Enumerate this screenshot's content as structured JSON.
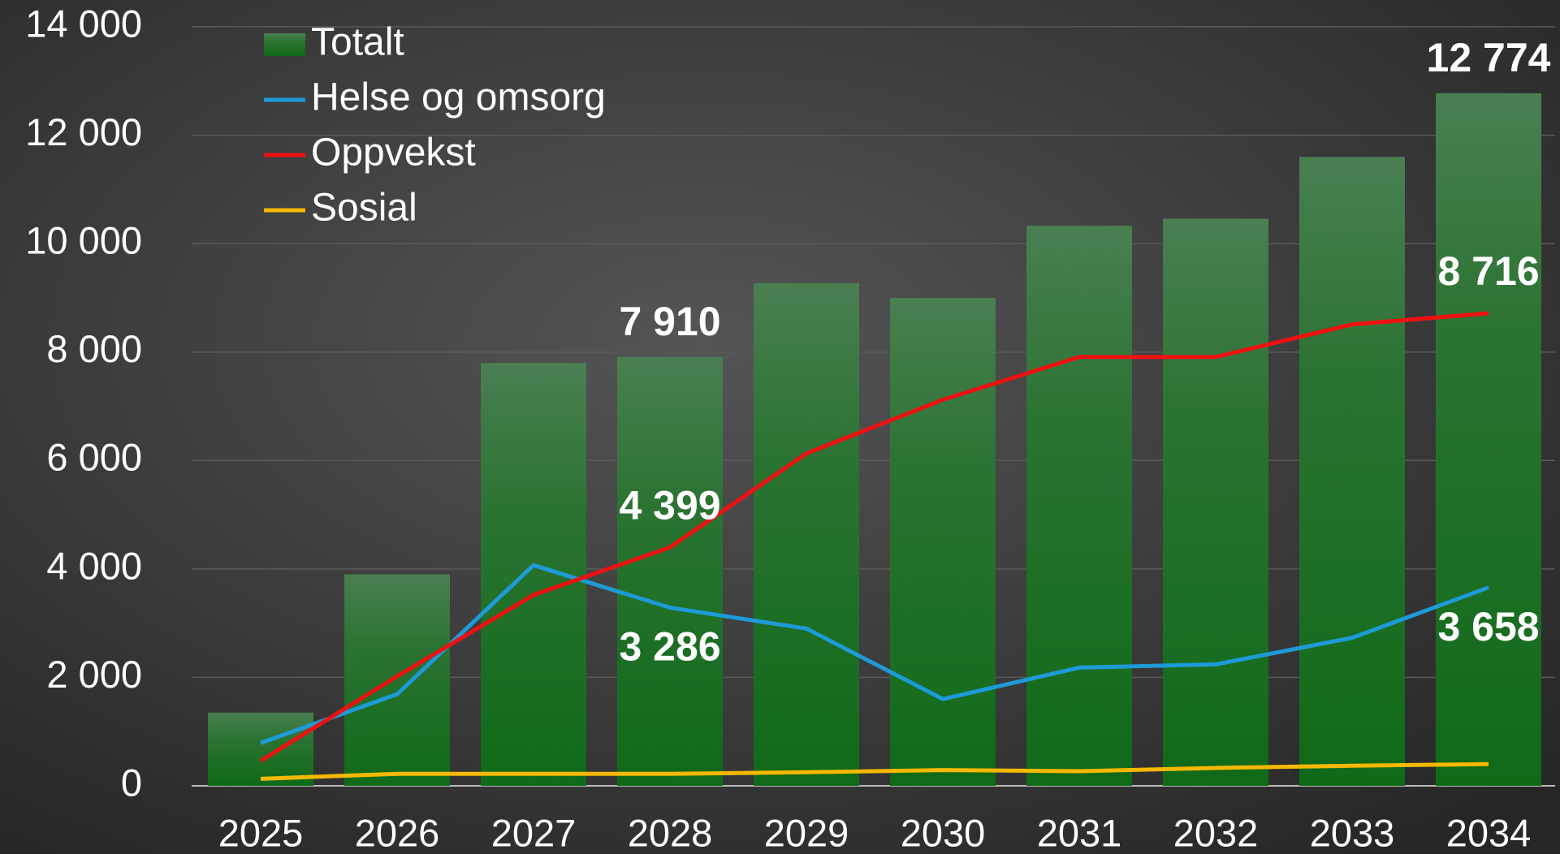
{
  "chart_data": {
    "type": "bar",
    "categories": [
      "2025",
      "2026",
      "2027",
      "2028",
      "2029",
      "2030",
      "2031",
      "2032",
      "2033",
      "2034"
    ],
    "series": [
      {
        "name": "Totalt",
        "type": "bar",
        "color": "#1a6e22",
        "values": [
          1350,
          3900,
          7800,
          7910,
          9270,
          9000,
          10330,
          10460,
          11600,
          12774
        ],
        "value_labels": [
          null,
          null,
          null,
          "7 910",
          null,
          null,
          null,
          null,
          null,
          "12 774"
        ]
      },
      {
        "name": "Helse og omsorg",
        "type": "line",
        "color": "#1e9ad6",
        "values": [
          790,
          1690,
          4070,
          3286,
          2900,
          1600,
          2180,
          2240,
          2730,
          3658
        ],
        "value_labels": [
          null,
          null,
          null,
          "3 286",
          null,
          null,
          null,
          null,
          null,
          "3 658"
        ]
      },
      {
        "name": "Oppvekst",
        "type": "line",
        "color": "#ee1111",
        "values": [
          460,
          2020,
          3520,
          4399,
          6130,
          7120,
          7910,
          7910,
          8510,
          8716
        ],
        "value_labels": [
          null,
          null,
          null,
          "4 399",
          null,
          null,
          null,
          null,
          null,
          "8 716"
        ]
      },
      {
        "name": "Sosial",
        "type": "line",
        "color": "#f5b800",
        "values": [
          130,
          220,
          220,
          220,
          250,
          290,
          270,
          330,
          370,
          400
        ]
      }
    ],
    "ylim": [
      0,
      14000
    ],
    "yticks": [
      0,
      {
        "value": 2000,
        "label": "2 000"
      },
      {
        "value": 4000,
        "label": "4 000"
      },
      {
        "value": 6000,
        "label": "6 000"
      },
      {
        "value": 8000,
        "label": "8 000"
      },
      {
        "value": 10000,
        "label": "10 000"
      },
      {
        "value": 12000,
        "label": "12 000"
      },
      {
        "value": 14000,
        "label": "14 000"
      }
    ],
    "grid": true,
    "legend": "upper left"
  }
}
